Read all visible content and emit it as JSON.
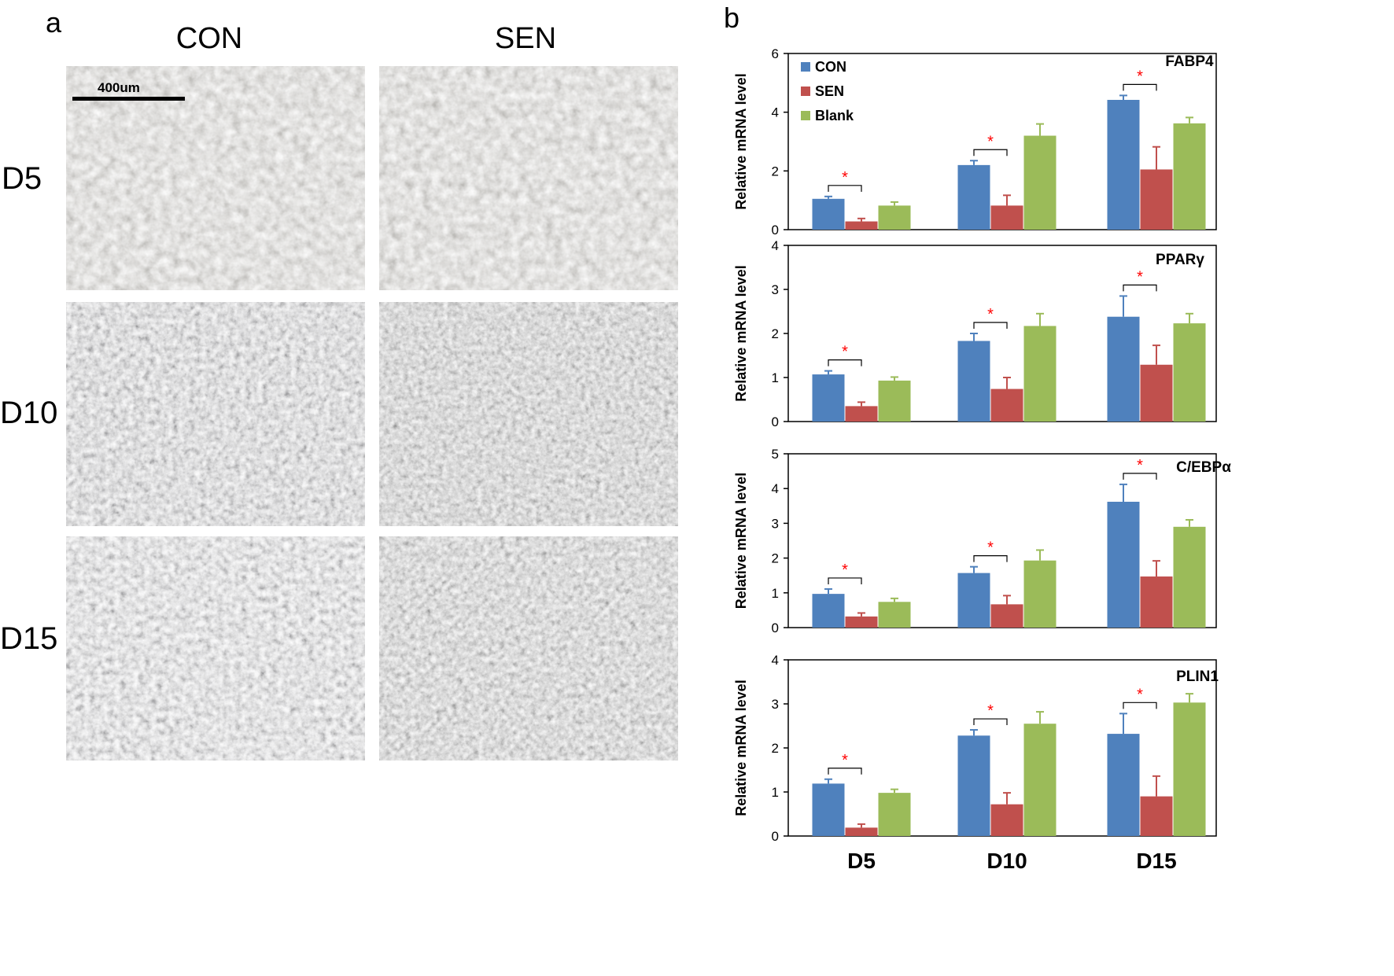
{
  "panel_a": {
    "letter": "a",
    "columns": [
      "CON",
      "SEN"
    ],
    "rows": [
      "D5",
      "D10",
      "D15"
    ],
    "scale_bar": "400um"
  },
  "panel_b": {
    "letter": "b",
    "x_categories": [
      "D5",
      "D10",
      "D15"
    ],
    "legend": [
      "CON",
      "SEN",
      "Blank"
    ],
    "colors": {
      "CON": "#4f81bd",
      "SEN": "#c0504d",
      "Blank": "#9bbb59",
      "star": "#ff0000"
    },
    "significance_mark": "*"
  },
  "chart_data": [
    {
      "type": "bar",
      "title": "FABP4",
      "ylabel": "Relative mRNA level",
      "categories": [
        "D5",
        "D10",
        "D15"
      ],
      "ylim": [
        0,
        6
      ],
      "yticks": [
        0,
        2,
        4,
        6
      ],
      "series": [
        {
          "name": "CON",
          "values": [
            1.05,
            2.2,
            4.42
          ],
          "errors": [
            0.08,
            0.15,
            0.15
          ]
        },
        {
          "name": "SEN",
          "values": [
            0.28,
            0.82,
            2.05
          ],
          "errors": [
            0.1,
            0.35,
            0.77
          ]
        },
        {
          "name": "Blank",
          "values": [
            0.82,
            3.2,
            3.62
          ],
          "errors": [
            0.12,
            0.4,
            0.2
          ]
        }
      ]
    },
    {
      "type": "bar",
      "title": "PPARγ",
      "ylabel": "Relative mRNA level",
      "categories": [
        "D5",
        "D10",
        "D15"
      ],
      "ylim": [
        0,
        4
      ],
      "yticks": [
        0,
        1,
        2,
        3,
        4
      ],
      "series": [
        {
          "name": "CON",
          "values": [
            1.07,
            1.83,
            2.38
          ],
          "errors": [
            0.08,
            0.17,
            0.47
          ]
        },
        {
          "name": "SEN",
          "values": [
            0.35,
            0.74,
            1.29
          ],
          "errors": [
            0.09,
            0.26,
            0.44
          ]
        },
        {
          "name": "Blank",
          "values": [
            0.93,
            2.17,
            2.23
          ],
          "errors": [
            0.08,
            0.28,
            0.22
          ]
        }
      ]
    },
    {
      "type": "bar",
      "title": "C/EBPα",
      "ylabel": "Relative mRNA level",
      "categories": [
        "D5",
        "D10",
        "D15"
      ],
      "ylim": [
        0,
        5
      ],
      "yticks": [
        0,
        1,
        2,
        3,
        4,
        5
      ],
      "series": [
        {
          "name": "CON",
          "values": [
            0.97,
            1.57,
            3.62
          ],
          "errors": [
            0.14,
            0.18,
            0.5
          ]
        },
        {
          "name": "SEN",
          "values": [
            0.32,
            0.67,
            1.47
          ],
          "errors": [
            0.1,
            0.25,
            0.45
          ]
        },
        {
          "name": "Blank",
          "values": [
            0.74,
            1.93,
            2.9
          ],
          "errors": [
            0.1,
            0.3,
            0.2
          ]
        }
      ]
    },
    {
      "type": "bar",
      "title": "PLIN1",
      "ylabel": "Relative mRNA level",
      "categories": [
        "D5",
        "D10",
        "D15"
      ],
      "ylim": [
        0,
        4
      ],
      "yticks": [
        0,
        1,
        2,
        3,
        4
      ],
      "series": [
        {
          "name": "CON",
          "values": [
            1.19,
            2.28,
            2.32
          ],
          "errors": [
            0.1,
            0.13,
            0.46
          ]
        },
        {
          "name": "SEN",
          "values": [
            0.19,
            0.72,
            0.9
          ],
          "errors": [
            0.08,
            0.26,
            0.46
          ]
        },
        {
          "name": "Blank",
          "values": [
            0.98,
            2.55,
            3.03
          ],
          "errors": [
            0.08,
            0.27,
            0.2
          ]
        }
      ]
    }
  ]
}
